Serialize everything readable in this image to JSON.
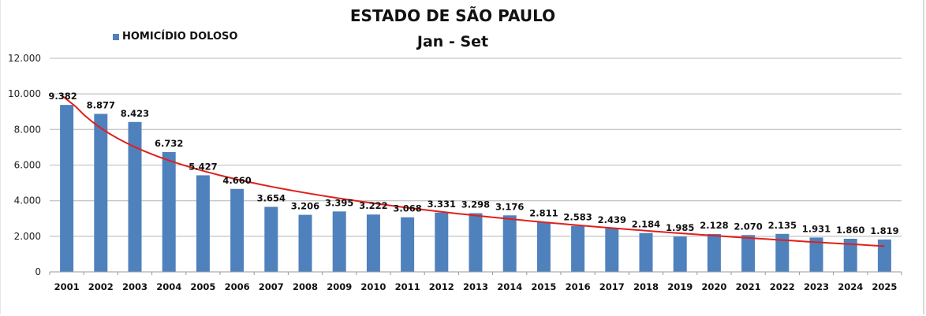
{
  "chart_data": {
    "type": "bar",
    "title": "ESTADO DE SÃO PAULO",
    "subtitle": "Jan - Set",
    "xlabel": "",
    "ylabel": "",
    "ylim": [
      0,
      12000
    ],
    "yticks": [
      0,
      2000,
      4000,
      6000,
      8000,
      10000,
      12000
    ],
    "ytick_labels": [
      "0",
      "2.000",
      "4.000",
      "6.000",
      "8.000",
      "10.000",
      "12.000"
    ],
    "grid": true,
    "legend_position": "top-left",
    "categories": [
      "2001",
      "2002",
      "2003",
      "2004",
      "2005",
      "2006",
      "2007",
      "2008",
      "2009",
      "2010",
      "2011",
      "2012",
      "2013",
      "2014",
      "2015",
      "2016",
      "2017",
      "2018",
      "2019",
      "2020",
      "2021",
      "2022",
      "2023",
      "2024",
      "2025"
    ],
    "series": [
      {
        "name": "HOMICÍDIO DOLOSO",
        "color": "#4f81bd",
        "values": [
          9382,
          8877,
          8423,
          6732,
          5427,
          4660,
          3654,
          3206,
          3395,
          3222,
          3068,
          3331,
          3298,
          3176,
          2811,
          2583,
          2439,
          2184,
          1985,
          2128,
          2070,
          2135,
          1931,
          1860,
          1819
        ],
        "labels": [
          "9.382",
          "8.877",
          "8.423",
          "6.732",
          "5.427",
          "4.660",
          "3.654",
          "3.206",
          "3.395",
          "3.222",
          "3.068",
          "3.331",
          "3.298",
          "3.176",
          "2.811",
          "2.583",
          "2.439",
          "2.184",
          "1.985",
          "2.128",
          "2.070",
          "2.135",
          "1.931",
          "1.860",
          "1.819"
        ]
      }
    ],
    "trendline": {
      "type": "logarithmic",
      "color": "#e0201b",
      "start_value": 9900,
      "end_value": 1450
    }
  },
  "header": {
    "title": "ESTADO DE SÃO PAULO",
    "subtitle": "Jan - Set"
  },
  "legend": {
    "label": "HOMICÍDIO DOLOSO",
    "color": "#4f81bd"
  }
}
